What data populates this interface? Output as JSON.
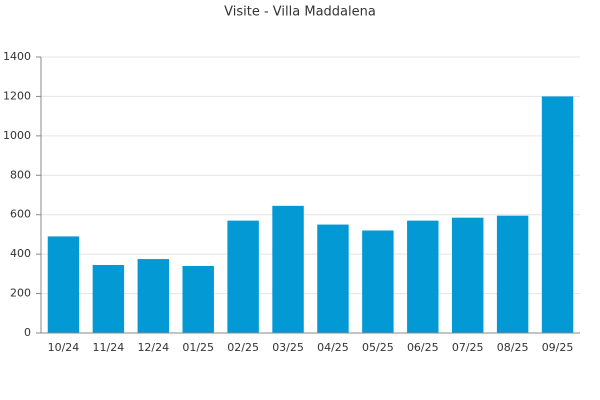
{
  "chart_data": {
    "type": "bar",
    "title": "Visite - Villa Maddalena",
    "categories": [
      "10/24",
      "11/24",
      "12/24",
      "01/25",
      "02/25",
      "03/25",
      "04/25",
      "05/25",
      "06/25",
      "07/25",
      "08/25",
      "09/25"
    ],
    "values": [
      490,
      345,
      375,
      340,
      570,
      645,
      550,
      520,
      570,
      585,
      595,
      1200
    ],
    "color": "#0399d4",
    "ylim": [
      0,
      1400
    ],
    "yticks": [
      0,
      200,
      400,
      600,
      800,
      1000,
      1200,
      1400
    ],
    "grid": true
  }
}
